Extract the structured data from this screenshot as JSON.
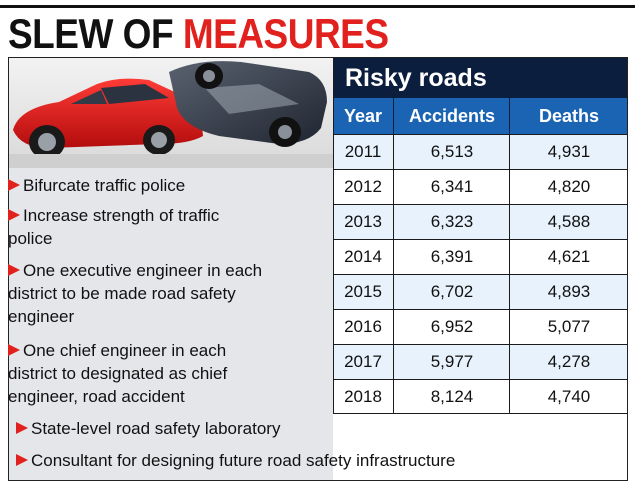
{
  "headline": {
    "part1": "SLEW OF ",
    "part2": "MEASURES"
  },
  "colors": {
    "accent_red": "#e0211d",
    "title_navy": "#0c1e3d",
    "header_blue": "#1b64b3",
    "row_tint": "#e8f2fc",
    "panel_gray": "#e4e6ea"
  },
  "photo": {
    "description_icon": "crashed-cars-photo-icon"
  },
  "measures": [
    {
      "lines": [
        "Bifurcate traffic police"
      ]
    },
    {
      "lines": [
        "Increase strength of traffic",
        "police"
      ]
    },
    {
      "lines": [
        "One executive engineer in each",
        "district to be made road safety",
        "engineer"
      ]
    },
    {
      "lines": [
        "One chief engineer in each",
        "district to designated as chief",
        "engineer, road accident"
      ]
    },
    {
      "lines": [
        "State-level road safety laboratory"
      ]
    },
    {
      "lines": [
        "Consultant for designing future road safety infrastructure"
      ]
    }
  ],
  "table": {
    "title": "Risky roads",
    "headers": [
      "Year",
      "Accidents",
      "Deaths"
    ],
    "rows": [
      [
        "2011",
        "6,513",
        "4,931"
      ],
      [
        "2012",
        "6,341",
        "4,820"
      ],
      [
        "2013",
        "6,323",
        "4,588"
      ],
      [
        "2014",
        "6,391",
        "4,621"
      ],
      [
        "2015",
        "6,702",
        "4,893"
      ],
      [
        "2016",
        "6,952",
        "5,077"
      ],
      [
        "2017",
        "5,977",
        "4,278"
      ],
      [
        "2018",
        "8,124",
        "4,740"
      ]
    ]
  }
}
